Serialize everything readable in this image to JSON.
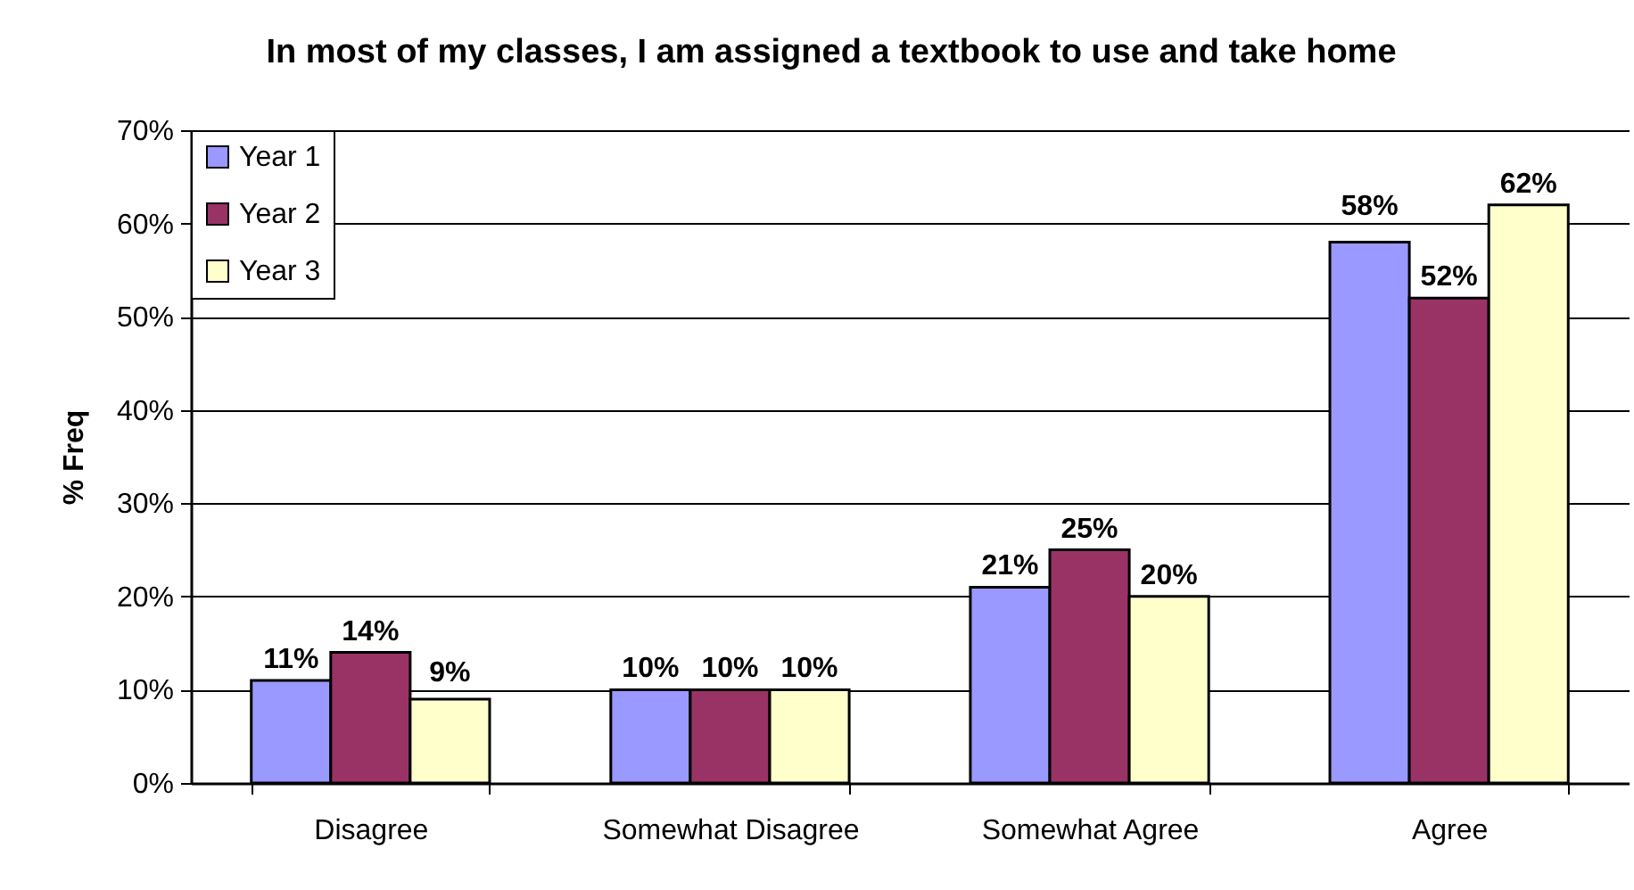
{
  "chart_data": {
    "type": "bar",
    "title": "In most of my classes, I am assigned a textbook to use and take home",
    "ylabel": "% Freq",
    "categories": [
      "Disagree",
      "Somewhat Disagree",
      "Somewhat Agree",
      "Agree"
    ],
    "series": [
      {
        "name": "Year 1",
        "color": "#9999ff",
        "values": [
          11,
          10,
          21,
          58
        ],
        "value_labels": [
          "11%",
          "10%",
          "21%",
          "58%"
        ]
      },
      {
        "name": "Year 2",
        "color": "#993366",
        "values": [
          14,
          10,
          25,
          52
        ],
        "value_labels": [
          "14%",
          "10%",
          "25%",
          "52%"
        ]
      },
      {
        "name": "Year 3",
        "color": "#ffffcc",
        "values": [
          9,
          10,
          20,
          62
        ],
        "value_labels": [
          "9%",
          "10%",
          "20%",
          "62%"
        ]
      }
    ],
    "ylim": [
      0,
      70
    ],
    "yticks": [
      {
        "value": 0,
        "label": "0%"
      },
      {
        "value": 10,
        "label": "10%"
      },
      {
        "value": 20,
        "label": "20%"
      },
      {
        "value": 30,
        "label": "30%"
      },
      {
        "value": 40,
        "label": "40%"
      },
      {
        "value": 50,
        "label": "50%"
      },
      {
        "value": 60,
        "label": "60%"
      },
      {
        "value": 70,
        "label": "70%"
      }
    ],
    "grid": "y",
    "legend": "top left"
  }
}
